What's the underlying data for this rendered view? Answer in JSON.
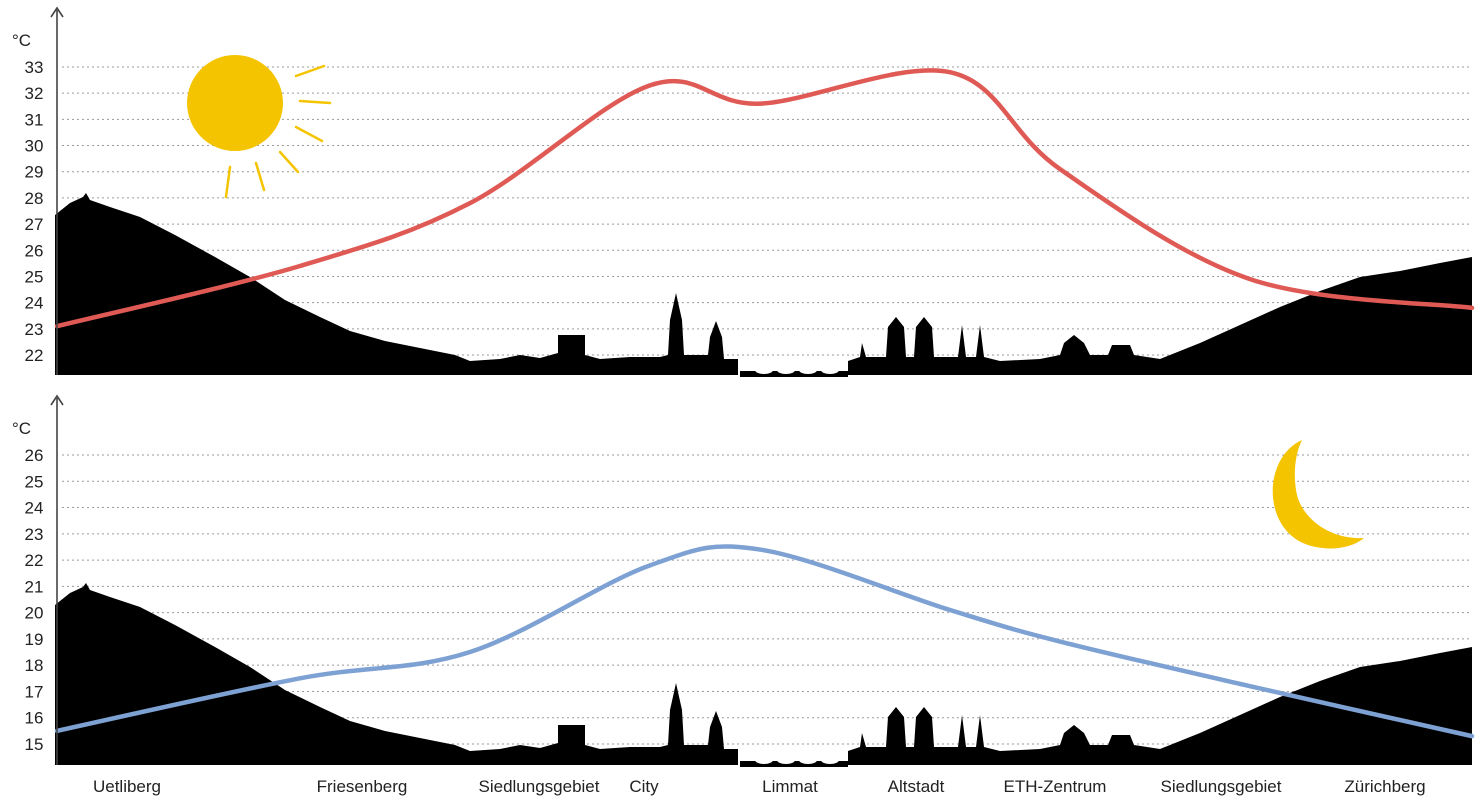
{
  "locations": [
    "Uetliberg",
    "Friesenberg",
    "Siedlungsgebiet",
    "City",
    "Limmat",
    "Altstadt",
    "ETH-Zentrum",
    "Siedlungsgebiet",
    "Zürichberg"
  ],
  "icons": {
    "day": "sun-icon",
    "night": "moon-icon"
  },
  "colors": {
    "day_line": "#e05a55",
    "night_line": "#7ea1d4",
    "silhouette": "#000000",
    "sun": "#f5c400",
    "moon": "#f5c400"
  },
  "chart_data": [
    {
      "type": "line",
      "title": "",
      "ylabel": "°C",
      "xlabel": "",
      "ylim": [
        22,
        33
      ],
      "yticks": [
        22,
        23,
        24,
        25,
        26,
        27,
        28,
        29,
        30,
        31,
        32,
        33
      ],
      "grid": true,
      "categories": [
        "Uetliberg",
        "Friesenberg",
        "Siedlungsgebiet",
        "City",
        "Limmat",
        "Altstadt",
        "ETH-Zentrum",
        "Siedlungsgebiet",
        "Zürichberg"
      ],
      "series": [
        {
          "name": "",
          "values": [
            23.1,
            25.4,
            27.8,
            32.3,
            31.6,
            32.8,
            29.1,
            24.9,
            23.8
          ]
        }
      ]
    },
    {
      "type": "line",
      "title": "",
      "ylabel": "°C",
      "xlabel": "",
      "ylim": [
        15,
        26
      ],
      "yticks": [
        15,
        16,
        17,
        18,
        19,
        20,
        21,
        22,
        23,
        24,
        25,
        26
      ],
      "grid": true,
      "categories": [
        "Uetliberg",
        "Friesenberg",
        "Siedlungsgebiet",
        "City",
        "Limmat",
        "Altstadt",
        "ETH-Zentrum",
        "Siedlungsgebiet",
        "Zürichberg"
      ],
      "series": [
        {
          "name": "",
          "values": [
            15.5,
            17.5,
            18.5,
            21.8,
            22.4,
            20.1,
            18.9,
            17.2,
            15.3
          ]
        }
      ]
    }
  ]
}
